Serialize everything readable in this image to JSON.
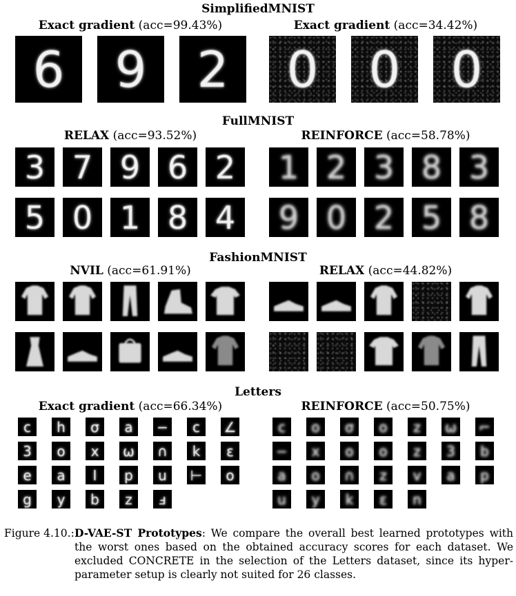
{
  "sections": [
    {
      "title": "SimplifiedMNIST",
      "panels": [
        {
          "method": "Exact gradient",
          "acc": "(acc=99.43%)",
          "tiles": [
            "6",
            "9",
            "2"
          ],
          "style": "clean"
        },
        {
          "method": "Exact gradient",
          "acc": "(acc=34.42%)",
          "tiles": [
            "0",
            "0",
            "0"
          ],
          "style": "noisy"
        }
      ]
    },
    {
      "title": "FullMNIST",
      "panels": [
        {
          "method": "RELAX",
          "acc": "(acc=93.52%)",
          "tiles": [
            "3",
            "7",
            "9",
            "6",
            "2",
            "5",
            "0",
            "1",
            "8",
            "4"
          ],
          "style": "clean"
        },
        {
          "method": "REINFORCE",
          "acc": "(acc=58.78%)",
          "tiles": [
            "1",
            "2",
            "3",
            "8",
            "3",
            "9",
            "0",
            "2",
            "5",
            "8"
          ],
          "style": "blurry"
        }
      ]
    },
    {
      "title": "FashionMNIST",
      "panels": [
        {
          "method": "NVIL",
          "acc": "(acc=61.91%)",
          "tiles": [
            "pullover-icon",
            "pullover-icon",
            "trouser-icon",
            "ankle-boot-icon",
            "tshirt-icon",
            "dress-icon",
            "sneaker-icon",
            "bag-icon",
            "sneaker-icon",
            "shirt-icon"
          ],
          "style": "clean"
        },
        {
          "method": "RELAX",
          "acc": "(acc=44.82%)",
          "tiles": [
            "sneaker-icon",
            "sneaker-icon",
            "pullover-icon",
            "noise-icon",
            "pullover-icon",
            "noise-icon",
            "noise-icon",
            "tshirt-icon",
            "shirt-icon",
            "trouser-icon"
          ],
          "style": "mixed"
        }
      ]
    },
    {
      "title": "Letters",
      "panels": [
        {
          "method": "Exact gradient",
          "acc": "(acc=66.34%)",
          "tiles": [
            "c",
            "h",
            "σ",
            "a",
            "−",
            "c",
            "∠",
            "3",
            "o",
            "x",
            "ω",
            "∩",
            "k",
            "ε",
            "e",
            "a",
            "I",
            "p",
            "u",
            "⊢",
            "o",
            "g",
            "y",
            "b",
            "z",
            "ⅎ"
          ],
          "style": "letters"
        },
        {
          "method": "REINFORCE",
          "acc": "(acc=50.75%)",
          "tiles": [
            "c",
            "o",
            "σ",
            "o",
            "z",
            "ω",
            "⌐",
            "−",
            "x",
            "o",
            "o",
            "z",
            "3",
            "b",
            "a",
            "o",
            "∩",
            "z",
            "v",
            "a",
            "p",
            "u",
            "y",
            "k",
            "ε",
            "n"
          ],
          "style": "letters-blurry"
        }
      ]
    }
  ],
  "caption": {
    "label": "Figure 4.10.:",
    "bold": "D-VAE-ST Prototypes",
    "text": ": We compare the overall best learned prototypes with the worst ones based on the obtained accuracy scores for each dataset. We excluded CONCRETE in the selection of the Letters dataset, since its hyper-parameter setup is clearly not suited for 26 classes."
  }
}
